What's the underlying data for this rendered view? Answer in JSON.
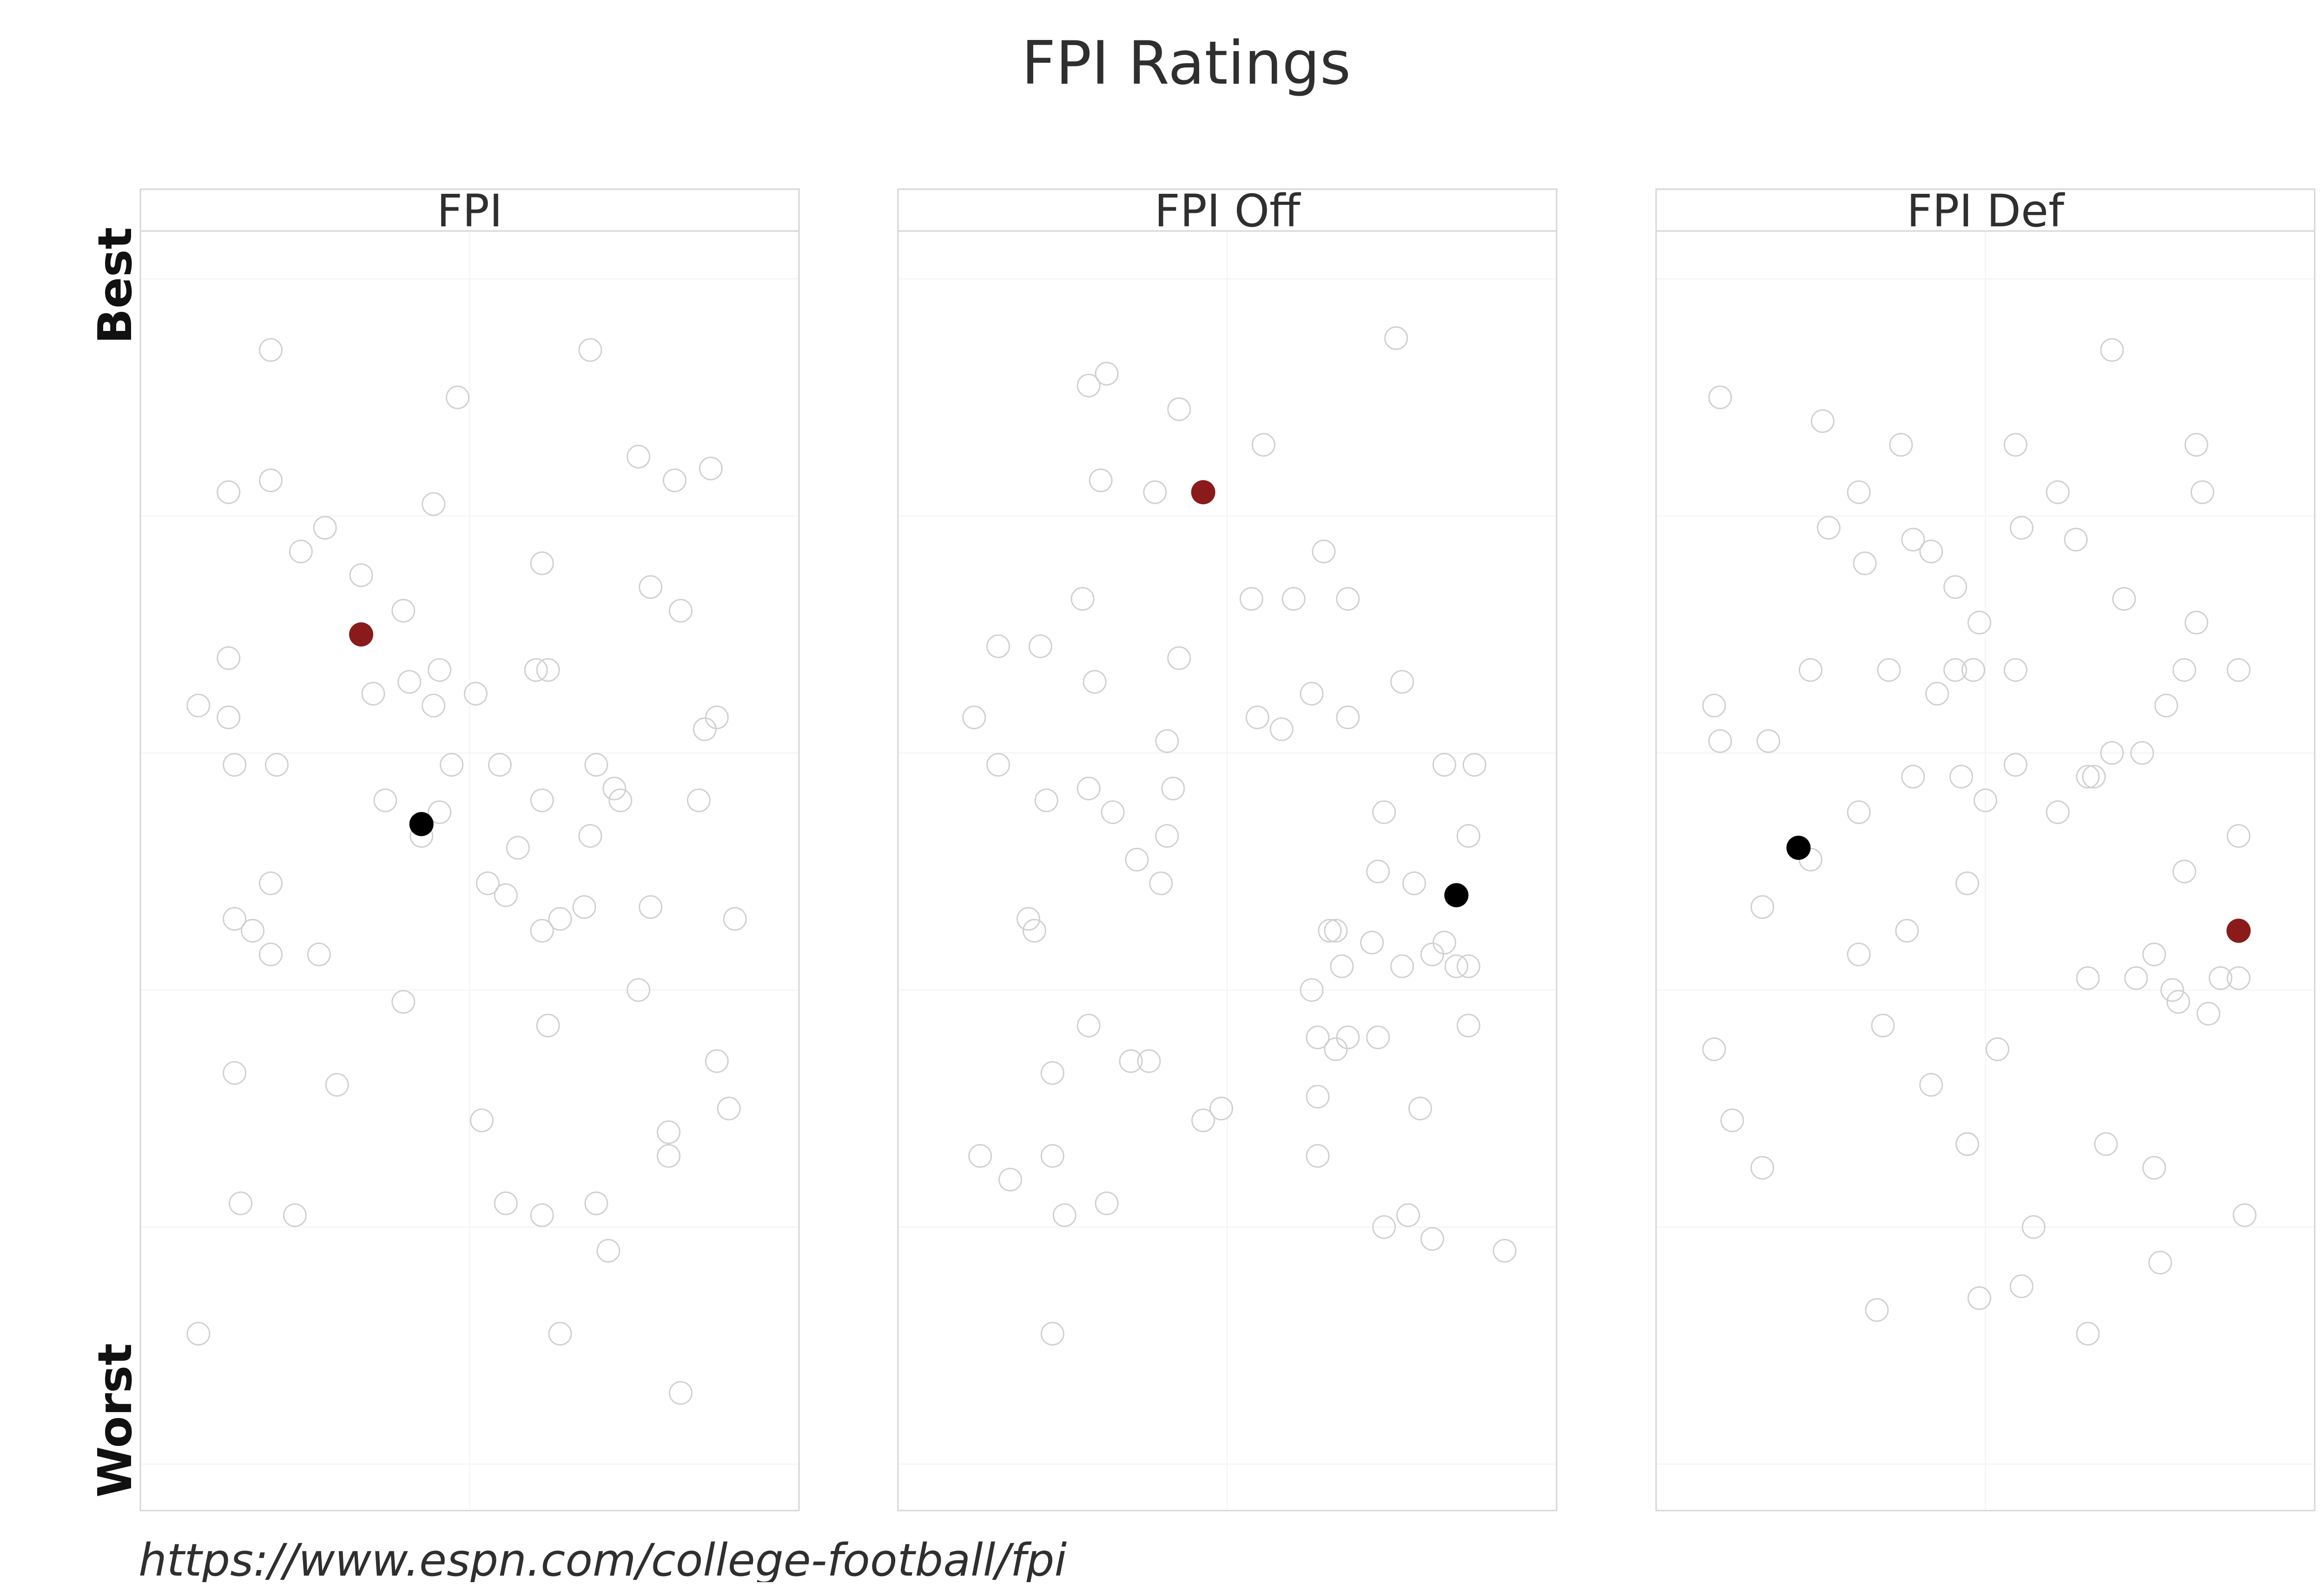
{
  "chart_data": {
    "type": "scatter",
    "title": "FPI Ratings",
    "y_top_label": "Best",
    "y_bottom_label": "Worst",
    "source": "https://www.espn.com/college-football/fpi",
    "ylim": [
      0,
      100
    ],
    "xlim": [
      0,
      100
    ],
    "y_direction": "Best at top, Worst at bottom",
    "grid": true,
    "colors": {
      "others": "#d0d0d0",
      "highlight_red": "#8b1a1a",
      "highlight_black": "#000000"
    },
    "panels": [
      {
        "label": "FPI",
        "highlight_red": {
          "x": 32,
          "y": 70
        },
        "highlight_black": {
          "x": 42,
          "y": 54
        },
        "others": [
          [
            17,
            94
          ],
          [
            70,
            94
          ],
          [
            48,
            90
          ],
          [
            10,
            82
          ],
          [
            17,
            83
          ],
          [
            44,
            81
          ],
          [
            78,
            85
          ],
          [
            84,
            83
          ],
          [
            90,
            84
          ],
          [
            26,
            79
          ],
          [
            22,
            77
          ],
          [
            32,
            75
          ],
          [
            62,
            76
          ],
          [
            80,
            74
          ],
          [
            39,
            72
          ],
          [
            85,
            72
          ],
          [
            10,
            68
          ],
          [
            5,
            64
          ],
          [
            10,
            63
          ],
          [
            40,
            66
          ],
          [
            45,
            67
          ],
          [
            34,
            65
          ],
          [
            44,
            64
          ],
          [
            51,
            65
          ],
          [
            61,
            67
          ],
          [
            63,
            67
          ],
          [
            11,
            59
          ],
          [
            18,
            59
          ],
          [
            47,
            59
          ],
          [
            55,
            59
          ],
          [
            36,
            56
          ],
          [
            45,
            55
          ],
          [
            62,
            56
          ],
          [
            71,
            59
          ],
          [
            74,
            57
          ],
          [
            75,
            56
          ],
          [
            88,
            56
          ],
          [
            91,
            63
          ],
          [
            89,
            62
          ],
          [
            42,
            53
          ],
          [
            58,
            52
          ],
          [
            70,
            53
          ],
          [
            17,
            49
          ],
          [
            11,
            46
          ],
          [
            14,
            45
          ],
          [
            17,
            43
          ],
          [
            25,
            43
          ],
          [
            53,
            49
          ],
          [
            56,
            48
          ],
          [
            62,
            45
          ],
          [
            65,
            46
          ],
          [
            69,
            47
          ],
          [
            80,
            47
          ],
          [
            94,
            46
          ],
          [
            39,
            39
          ],
          [
            63,
            37
          ],
          [
            78,
            40
          ],
          [
            11,
            33
          ],
          [
            28,
            32
          ],
          [
            52,
            29
          ],
          [
            91,
            34
          ],
          [
            93,
            30
          ],
          [
            83,
            28
          ],
          [
            83,
            26
          ],
          [
            12,
            22
          ],
          [
            21,
            21
          ],
          [
            56,
            22
          ],
          [
            62,
            21
          ],
          [
            71,
            22
          ],
          [
            73,
            18
          ],
          [
            5,
            11
          ],
          [
            65,
            11
          ],
          [
            85,
            6
          ]
        ]
      },
      {
        "label": "FPI Off",
        "highlight_red": {
          "x": 46,
          "y": 82
        },
        "highlight_black": {
          "x": 88,
          "y": 48
        },
        "others": [
          [
            78,
            95
          ],
          [
            30,
            92
          ],
          [
            27,
            91
          ],
          [
            42,
            89
          ],
          [
            56,
            86
          ],
          [
            29,
            83
          ],
          [
            38,
            82
          ],
          [
            66,
            77
          ],
          [
            54,
            73
          ],
          [
            61,
            73
          ],
          [
            70,
            73
          ],
          [
            26,
            73
          ],
          [
            12,
            69
          ],
          [
            19,
            69
          ],
          [
            42,
            68
          ],
          [
            28,
            66
          ],
          [
            79,
            66
          ],
          [
            64,
            65
          ],
          [
            55,
            63
          ],
          [
            59,
            62
          ],
          [
            70,
            63
          ],
          [
            8,
            63
          ],
          [
            40,
            61
          ],
          [
            12,
            59
          ],
          [
            27,
            57
          ],
          [
            20,
            56
          ],
          [
            41,
            57
          ],
          [
            86,
            59
          ],
          [
            91,
            59
          ],
          [
            31,
            55
          ],
          [
            76,
            55
          ],
          [
            40,
            53
          ],
          [
            90,
            53
          ],
          [
            35,
            51
          ],
          [
            75,
            50
          ],
          [
            39,
            49
          ],
          [
            81,
            49
          ],
          [
            17,
            46
          ],
          [
            18,
            45
          ],
          [
            67,
            45
          ],
          [
            68,
            45
          ],
          [
            86,
            44
          ],
          [
            74,
            44
          ],
          [
            69,
            42
          ],
          [
            79,
            42
          ],
          [
            84,
            43
          ],
          [
            88,
            42
          ],
          [
            90,
            42
          ],
          [
            64,
            40
          ],
          [
            27,
            37
          ],
          [
            65,
            36
          ],
          [
            70,
            36
          ],
          [
            75,
            36
          ],
          [
            68,
            35
          ],
          [
            34,
            34
          ],
          [
            37,
            34
          ],
          [
            21,
            33
          ],
          [
            90,
            37
          ],
          [
            65,
            31
          ],
          [
            49,
            30
          ],
          [
            46,
            29
          ],
          [
            82,
            30
          ],
          [
            9,
            26
          ],
          [
            14,
            24
          ],
          [
            21,
            26
          ],
          [
            65,
            26
          ],
          [
            23,
            21
          ],
          [
            30,
            22
          ],
          [
            80,
            21
          ],
          [
            76,
            20
          ],
          [
            84,
            19
          ],
          [
            96,
            18
          ],
          [
            21,
            11
          ]
        ]
      },
      {
        "label": "FPI Def",
        "highlight_red": {
          "x": 92,
          "y": 45
        },
        "highlight_black": {
          "x": 19,
          "y": 52
        },
        "others": [
          [
            71,
            94
          ],
          [
            6,
            90
          ],
          [
            23,
            88
          ],
          [
            36,
            86
          ],
          [
            55,
            86
          ],
          [
            85,
            86
          ],
          [
            29,
            82
          ],
          [
            62,
            82
          ],
          [
            86,
            82
          ],
          [
            24,
            79
          ],
          [
            38,
            78
          ],
          [
            41,
            77
          ],
          [
            56,
            79
          ],
          [
            65,
            78
          ],
          [
            30,
            76
          ],
          [
            45,
            74
          ],
          [
            73,
            73
          ],
          [
            49,
            71
          ],
          [
            85,
            71
          ],
          [
            21,
            67
          ],
          [
            34,
            67
          ],
          [
            45,
            67
          ],
          [
            48,
            67
          ],
          [
            55,
            67
          ],
          [
            83,
            67
          ],
          [
            92,
            67
          ],
          [
            42,
            65
          ],
          [
            80,
            64
          ],
          [
            5,
            64
          ],
          [
            6,
            61
          ],
          [
            14,
            61
          ],
          [
            76,
            60
          ],
          [
            71,
            60
          ],
          [
            38,
            58
          ],
          [
            46,
            58
          ],
          [
            55,
            59
          ],
          [
            67,
            58
          ],
          [
            68,
            58
          ],
          [
            50,
            56
          ],
          [
            62,
            55
          ],
          [
            29,
            55
          ],
          [
            92,
            53
          ],
          [
            21,
            51
          ],
          [
            47,
            49
          ],
          [
            83,
            50
          ],
          [
            13,
            47
          ],
          [
            37,
            45
          ],
          [
            29,
            43
          ],
          [
            78,
            43
          ],
          [
            67,
            41
          ],
          [
            75,
            41
          ],
          [
            81,
            40
          ],
          [
            89,
            41
          ],
          [
            92,
            41
          ],
          [
            82,
            39
          ],
          [
            87,
            38
          ],
          [
            33,
            37
          ],
          [
            52,
            35
          ],
          [
            5,
            35
          ],
          [
            41,
            32
          ],
          [
            8,
            29
          ],
          [
            47,
            27
          ],
          [
            47,
            27
          ],
          [
            70,
            27
          ],
          [
            13,
            25
          ],
          [
            78,
            25
          ],
          [
            58,
            20
          ],
          [
            93,
            21
          ],
          [
            79,
            17
          ],
          [
            49,
            14
          ],
          [
            56,
            15
          ],
          [
            32,
            13
          ],
          [
            67,
            11
          ]
        ]
      }
    ]
  }
}
